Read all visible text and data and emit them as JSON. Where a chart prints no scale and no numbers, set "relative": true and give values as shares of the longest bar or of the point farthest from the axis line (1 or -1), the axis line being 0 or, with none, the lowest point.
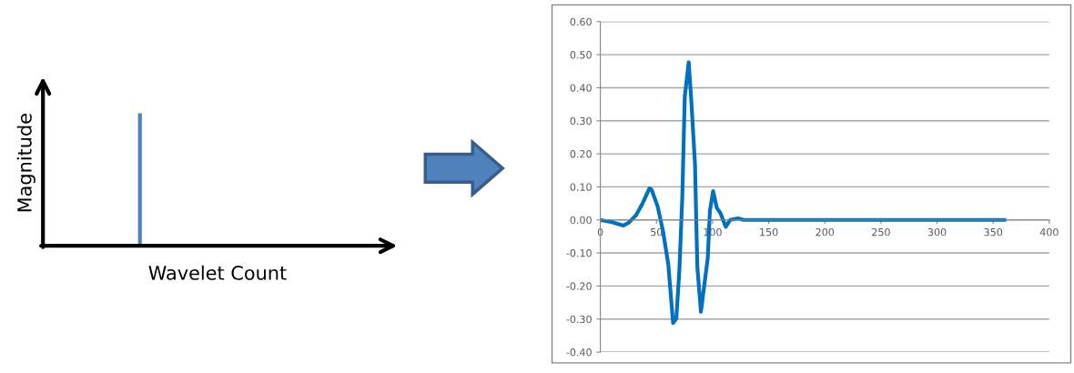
{
  "chart_data": [
    {
      "type": "bar",
      "relative": true,
      "xlabel": "Wavelet Count",
      "ylabel": "Magnitude",
      "categories": [
        null
      ],
      "values": [
        1
      ],
      "color": "#4f81bd"
    },
    {
      "type": "line",
      "x": [
        0,
        10.4,
        20.5,
        25,
        31.7,
        37,
        43.7,
        45.6,
        51,
        55.7,
        60.5,
        64.8,
        67.7,
        70.4,
        73,
        75.2,
        78.7,
        81,
        84.3,
        86.4,
        89.6,
        95.7,
        97.6,
        100.5,
        103.7,
        106.9,
        111.7,
        115.7,
        122.4,
        127.7,
        200,
        300,
        360
      ],
      "series": [
        {
          "color": "#0070c0",
          "values": [
            0,
            -0.007,
            -0.017,
            -0.009,
            0.014,
            0.046,
            0.095,
            0.092,
            0.041,
            -0.032,
            -0.133,
            -0.312,
            -0.298,
            -0.152,
            0.069,
            0.372,
            0.477,
            0.363,
            0.17,
            -0.142,
            -0.278,
            -0.115,
            0.028,
            0.087,
            0.037,
            0.021,
            -0.021,
            0,
            0.005,
            0,
            0,
            0,
            0
          ]
        }
      ],
      "xlim": [
        0,
        400
      ],
      "xticks": [
        0,
        50,
        100,
        150,
        200,
        250,
        300,
        350,
        400
      ],
      "ylim": [
        -0.4,
        0.6
      ],
      "yticks": [
        {
          "value": -0.4,
          "label": "-0.40"
        },
        {
          "value": -0.3,
          "label": "-0.30"
        },
        {
          "value": -0.2,
          "label": "-0.20"
        },
        {
          "value": -0.1,
          "label": "-0.10"
        },
        {
          "value": 0,
          "label": "0.00"
        },
        {
          "value": 0.1,
          "label": "0.10"
        },
        {
          "value": 0.2,
          "label": "0.20"
        },
        {
          "value": 0.3,
          "label": "0.30"
        },
        {
          "value": 0.4,
          "label": "0.40"
        },
        {
          "value": 0.5,
          "label": "0.50"
        },
        {
          "value": 0.6,
          "label": "0.60"
        }
      ],
      "grid": "y",
      "legend": false,
      "marker": "none",
      "line_style": "solid"
    }
  ]
}
